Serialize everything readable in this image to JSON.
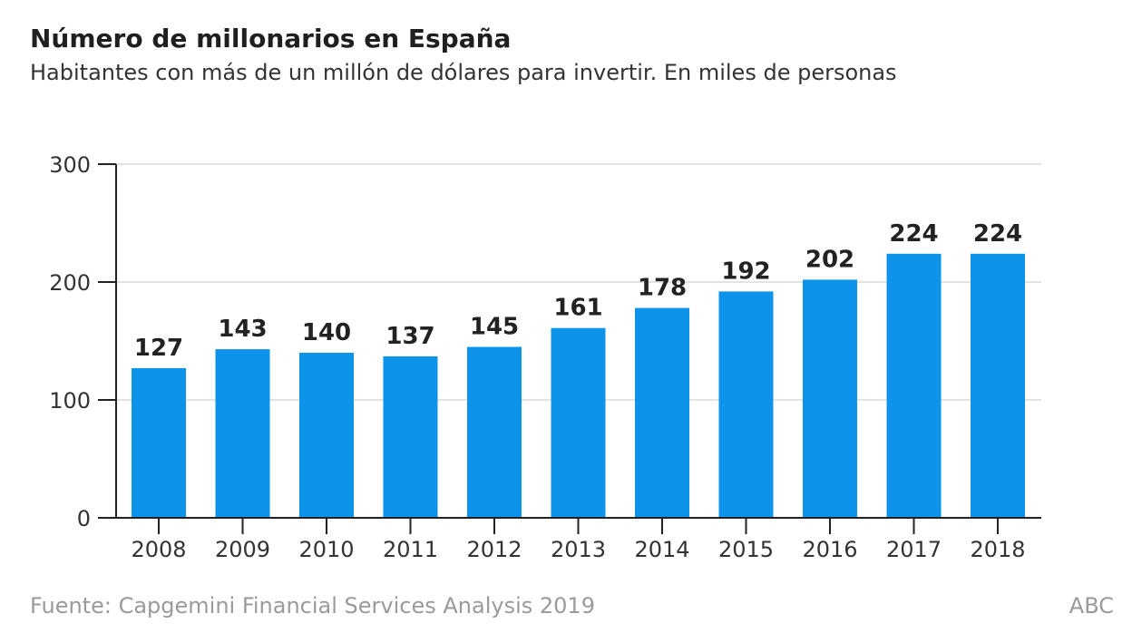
{
  "header": {
    "title": "Número de millonarios en España",
    "subtitle": "Habitantes con más de un millón de dólares para invertir. En miles de personas"
  },
  "footer": {
    "source": "Fuente: Capgemini Financial Services Analysis 2019",
    "brand": "ABC"
  },
  "chart_data": {
    "type": "bar",
    "title": "Número de millonarios en España",
    "subtitle": "Habitantes con más de un millón de dólares para invertir. En miles de personas",
    "xlabel": "",
    "ylabel": "",
    "categories": [
      "2008",
      "2009",
      "2010",
      "2011",
      "2012",
      "2013",
      "2014",
      "2015",
      "2016",
      "2017",
      "2018"
    ],
    "values": [
      127,
      143,
      140,
      137,
      145,
      161,
      178,
      192,
      202,
      224,
      224
    ],
    "data_labels": [
      "127",
      "143",
      "140",
      "137",
      "145",
      "161",
      "178",
      "192",
      "202",
      "224",
      "224"
    ],
    "ylim": [
      0,
      300
    ],
    "yticks": [
      0,
      100,
      200,
      300
    ],
    "grid": true,
    "legend": "none",
    "bar_color": "#0d93e9",
    "grid_color": "#e3e3e3"
  }
}
